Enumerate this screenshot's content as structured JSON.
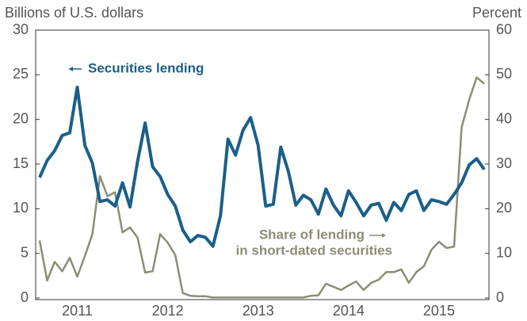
{
  "chart_data": {
    "type": "line",
    "y_label": "Billions of U.S. dollars",
    "y2_label": "Percent",
    "categories": [
      null,
      null,
      null,
      null,
      null,
      "2011",
      null,
      null,
      null,
      null,
      null,
      null,
      null,
      null,
      null,
      null,
      null,
      "2012",
      null,
      null,
      null,
      null,
      null,
      null,
      null,
      null,
      null,
      null,
      null,
      "2013",
      null,
      null,
      null,
      null,
      null,
      null,
      null,
      null,
      null,
      null,
      null,
      "2014",
      null,
      null,
      null,
      null,
      null,
      null,
      null,
      null,
      null,
      null,
      null,
      "2015",
      null,
      null,
      null,
      null,
      null,
      null
    ],
    "series": [
      {
        "name": "Securities lending",
        "color": "#1a5f8a",
        "axis": "y",
        "values": [
          13.5,
          15.4,
          16.5,
          18.2,
          18.5,
          23.6,
          17.1,
          15.1,
          10.8,
          11.0,
          10.3,
          12.9,
          10.2,
          15.3,
          19.6,
          14.7,
          13.6,
          11.6,
          10.3,
          7.6,
          6.3,
          7.0,
          6.8,
          5.8,
          9.2,
          17.8,
          16.0,
          18.8,
          20.2,
          17.1,
          10.3,
          10.5,
          16.9,
          14.2,
          10.4,
          11.5,
          11.0,
          9.4,
          12.2,
          10.4,
          9.2,
          12.0,
          10.7,
          9.2,
          10.4,
          10.6,
          8.7,
          10.7,
          9.8,
          11.6,
          12.0,
          9.8,
          11.0,
          10.8,
          10.5,
          11.6,
          12.9,
          14.9,
          15.6,
          14.4
        ]
      },
      {
        "name": "Share of lending in short-dated securities",
        "color": "#8c8c78",
        "axis": "y2",
        "values": [
          12.9,
          3.9,
          8.1,
          6.0,
          9.0,
          4.8,
          9.4,
          14.3,
          27.3,
          22.8,
          23.7,
          14.7,
          15.8,
          13.5,
          5.7,
          6.0,
          14.3,
          12.4,
          9.6,
          1.1,
          0.5,
          0.4,
          0.4,
          0.1,
          0.1,
          0.1,
          0.1,
          0.1,
          0.1,
          0.1,
          0.1,
          0.1,
          0.1,
          0.1,
          0.1,
          0.1,
          0.5,
          0.6,
          3.2,
          2.5,
          1.8,
          2.8,
          3.7,
          1.8,
          3.4,
          4.1,
          5.8,
          5.8,
          6.4,
          3.4,
          5.8,
          7.1,
          10.8,
          12.6,
          11.2,
          11.5,
          38.2,
          44.4,
          49.4,
          48.0
        ]
      }
    ],
    "annotations": [
      "Securities lending",
      "Share of lending",
      "in short-dated securities"
    ],
    "ylim": [
      0,
      30
    ],
    "yticks": [
      0,
      5,
      10,
      15,
      20,
      25,
      30
    ],
    "y2lim": [
      0,
      60
    ],
    "y2ticks": [
      0,
      10,
      20,
      30,
      40,
      50,
      60
    ]
  }
}
